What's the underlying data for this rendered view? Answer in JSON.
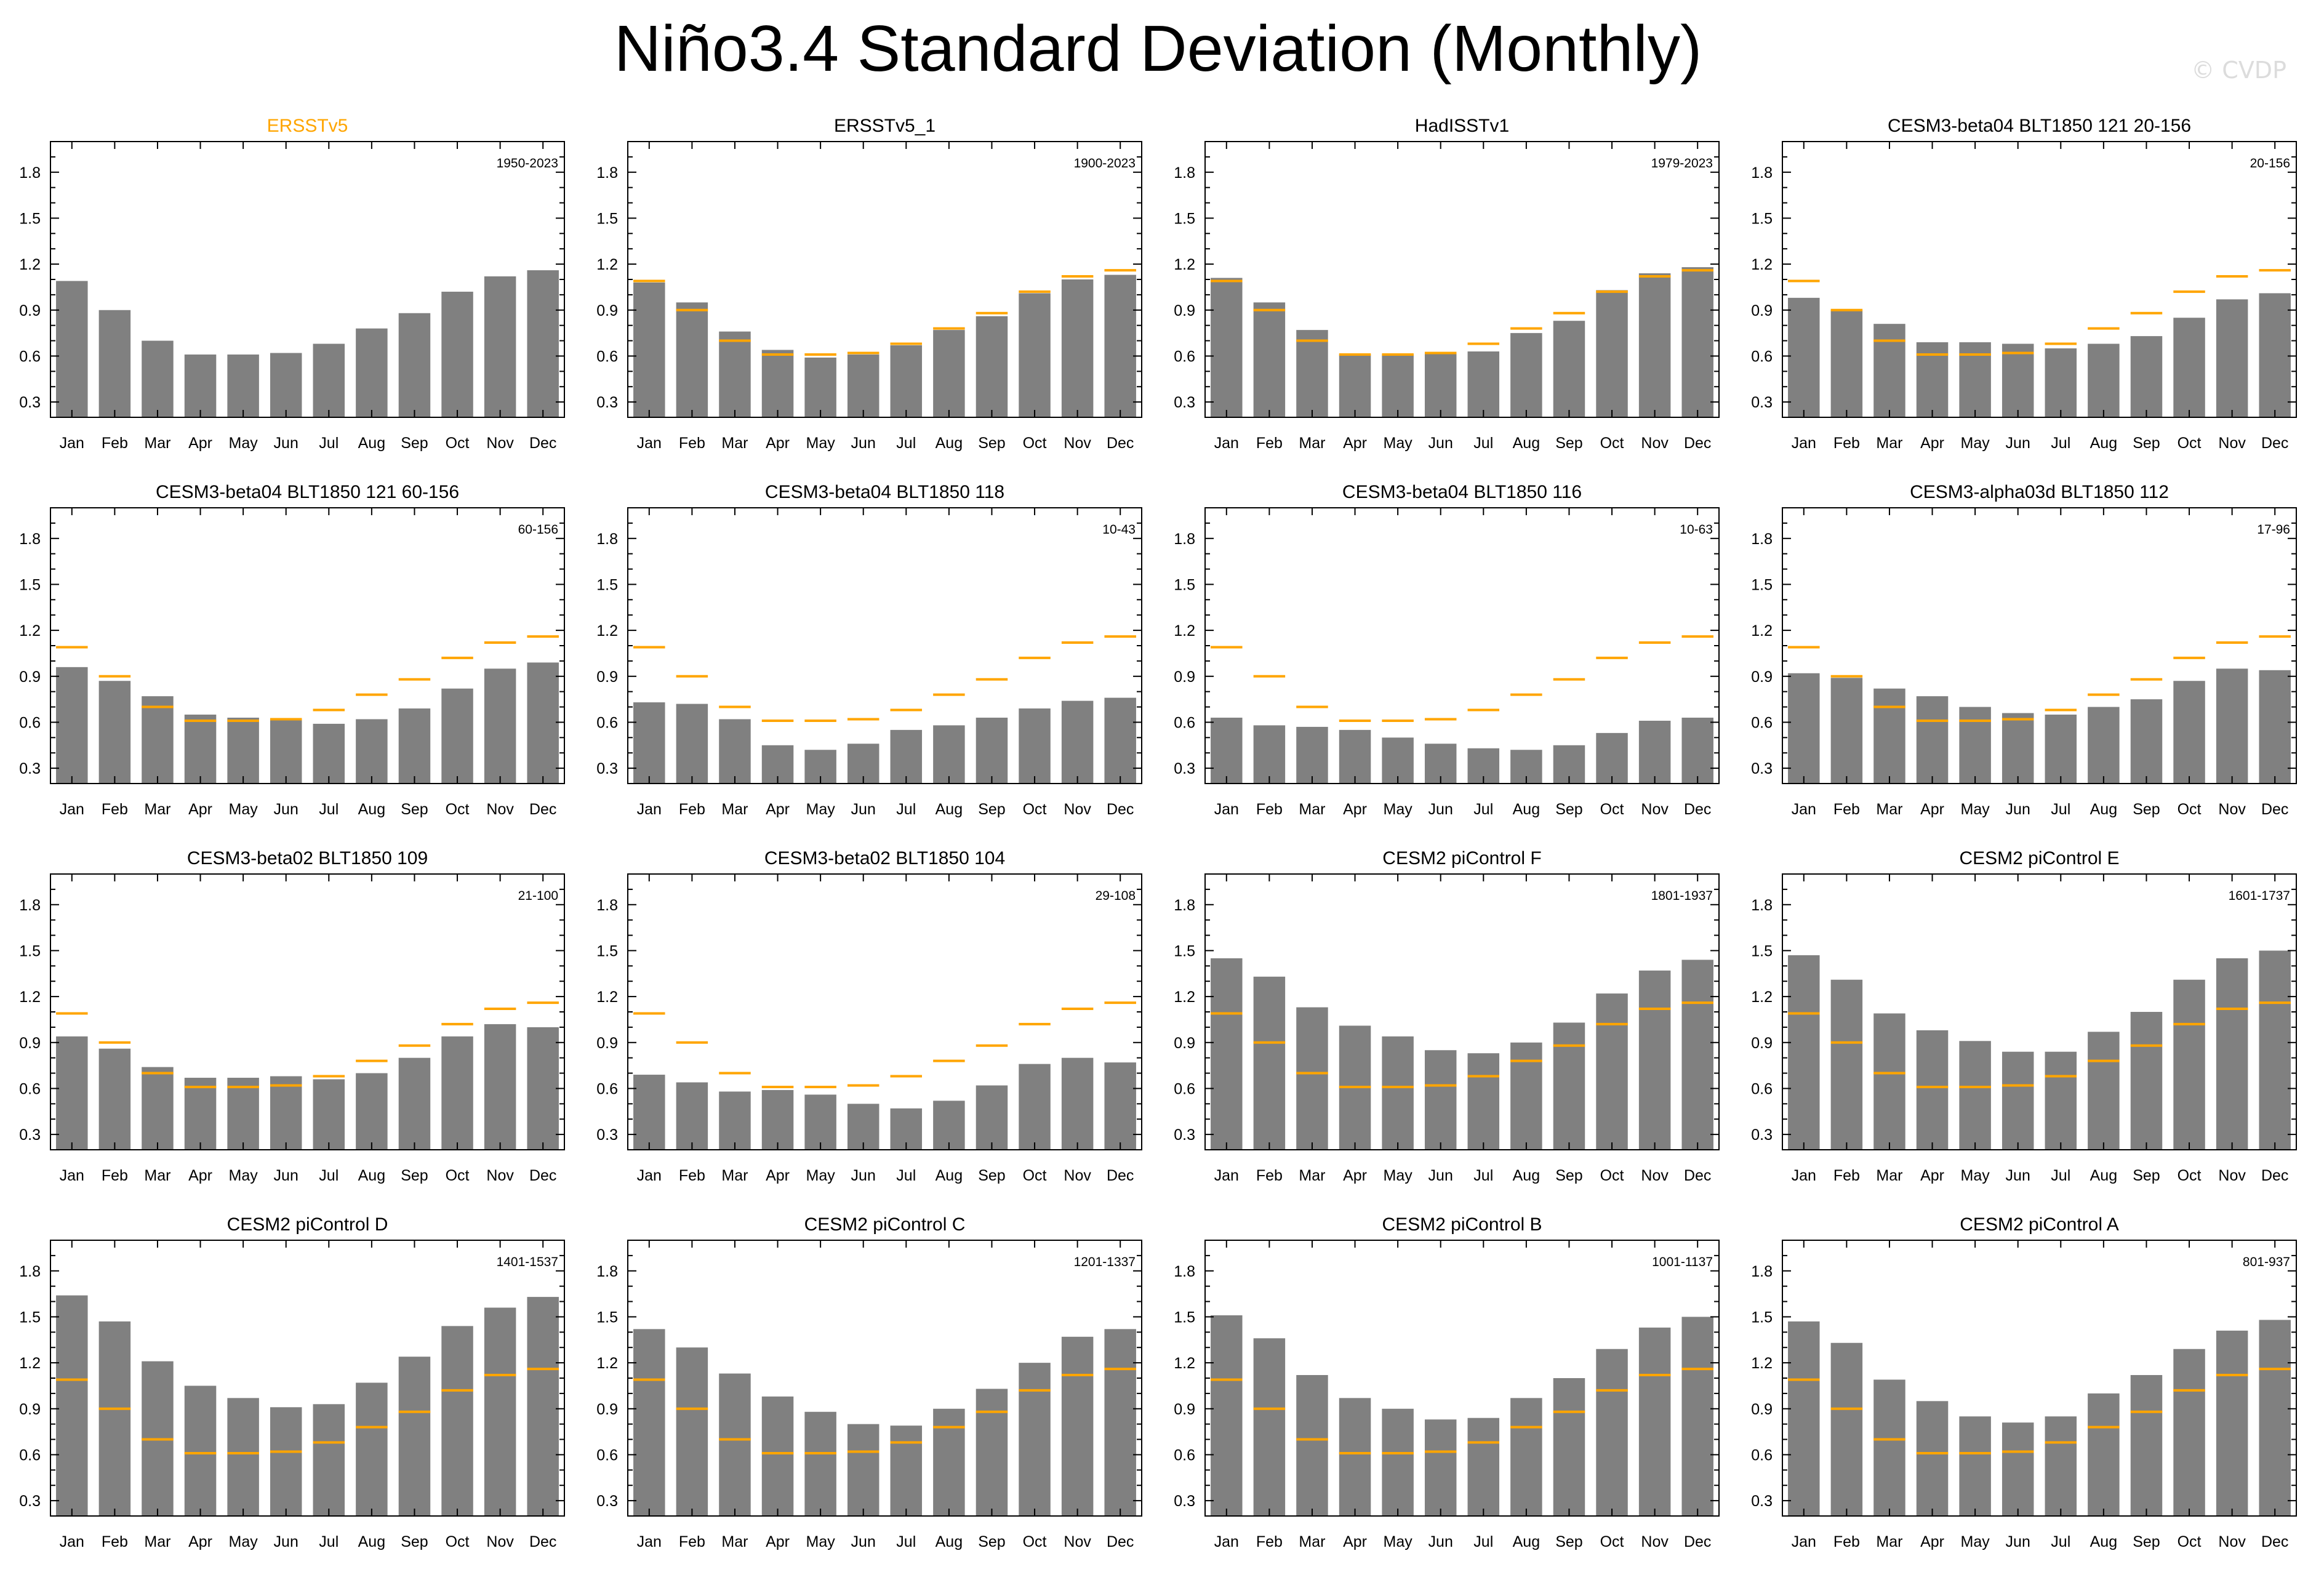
{
  "title": "Niño3.4 Standard Deviation (Monthly)",
  "watermark": "© CVDP",
  "colors": {
    "bar": "#808080",
    "reference_line": "#FFA500",
    "highlight_title": "#FFA500",
    "axis": "#000000"
  },
  "chart_data": [
    {
      "type": "bar",
      "title": "ERSSTv5",
      "period": "1950-2023",
      "highlight": true,
      "categories": [
        "Jan",
        "Feb",
        "Mar",
        "Apr",
        "May",
        "Jun",
        "Jul",
        "Aug",
        "Sep",
        "Oct",
        "Nov",
        "Dec"
      ],
      "values": [
        1.09,
        0.9,
        0.7,
        0.61,
        0.61,
        0.62,
        0.68,
        0.78,
        0.88,
        1.02,
        1.12,
        1.16
      ],
      "reference": [
        1.09,
        0.9,
        0.7,
        0.61,
        0.61,
        0.62,
        0.68,
        0.78,
        0.88,
        1.02,
        1.12,
        1.16
      ],
      "show_reference": false,
      "yticks": [
        "0.3",
        "0.6",
        "0.9",
        "1.2",
        "1.5",
        "1.8"
      ],
      "ylim": [
        0.2,
        2.0
      ]
    },
    {
      "type": "bar",
      "title": "ERSSTv5_1",
      "period": "1900-2023",
      "highlight": false,
      "categories": [
        "Jan",
        "Feb",
        "Mar",
        "Apr",
        "May",
        "Jun",
        "Jul",
        "Aug",
        "Sep",
        "Oct",
        "Nov",
        "Dec"
      ],
      "values": [
        1.08,
        0.95,
        0.76,
        0.64,
        0.59,
        0.61,
        0.67,
        0.77,
        0.86,
        1.01,
        1.1,
        1.13
      ],
      "reference": [
        1.09,
        0.9,
        0.7,
        0.61,
        0.61,
        0.62,
        0.68,
        0.78,
        0.88,
        1.02,
        1.12,
        1.16
      ],
      "show_reference": true,
      "yticks": [
        "0.3",
        "0.6",
        "0.9",
        "1.2",
        "1.5",
        "1.8"
      ],
      "ylim": [
        0.2,
        2.0
      ]
    },
    {
      "type": "bar",
      "title": "HadISSTv1",
      "period": "1979-2023",
      "highlight": false,
      "categories": [
        "Jan",
        "Feb",
        "Mar",
        "Apr",
        "May",
        "Jun",
        "Jul",
        "Aug",
        "Sep",
        "Oct",
        "Nov",
        "Dec"
      ],
      "values": [
        1.11,
        0.95,
        0.77,
        0.61,
        0.61,
        0.62,
        0.63,
        0.75,
        0.83,
        1.03,
        1.14,
        1.18
      ],
      "reference": [
        1.09,
        0.9,
        0.7,
        0.61,
        0.61,
        0.62,
        0.68,
        0.78,
        0.88,
        1.02,
        1.12,
        1.16
      ],
      "show_reference": true,
      "yticks": [
        "0.3",
        "0.6",
        "0.9",
        "1.2",
        "1.5",
        "1.8"
      ],
      "ylim": [
        0.2,
        2.0
      ]
    },
    {
      "type": "bar",
      "title": "CESM3-beta04 BLT1850 121 20-156",
      "period": "20-156",
      "highlight": false,
      "categories": [
        "Jan",
        "Feb",
        "Mar",
        "Apr",
        "May",
        "Jun",
        "Jul",
        "Aug",
        "Sep",
        "Oct",
        "Nov",
        "Dec"
      ],
      "values": [
        0.98,
        0.9,
        0.81,
        0.69,
        0.69,
        0.68,
        0.65,
        0.68,
        0.73,
        0.85,
        0.97,
        1.01
      ],
      "reference": [
        1.09,
        0.9,
        0.7,
        0.61,
        0.61,
        0.62,
        0.68,
        0.78,
        0.88,
        1.02,
        1.12,
        1.16
      ],
      "show_reference": true,
      "yticks": [
        "0.3",
        "0.6",
        "0.9",
        "1.2",
        "1.5",
        "1.8"
      ],
      "ylim": [
        0.2,
        2.0
      ]
    },
    {
      "type": "bar",
      "title": "CESM3-beta04 BLT1850 121 60-156",
      "period": "60-156",
      "highlight": false,
      "categories": [
        "Jan",
        "Feb",
        "Mar",
        "Apr",
        "May",
        "Jun",
        "Jul",
        "Aug",
        "Sep",
        "Oct",
        "Nov",
        "Dec"
      ],
      "values": [
        0.96,
        0.87,
        0.77,
        0.65,
        0.63,
        0.62,
        0.59,
        0.62,
        0.69,
        0.82,
        0.95,
        0.99
      ],
      "reference": [
        1.09,
        0.9,
        0.7,
        0.61,
        0.61,
        0.62,
        0.68,
        0.78,
        0.88,
        1.02,
        1.12,
        1.16
      ],
      "show_reference": true,
      "yticks": [
        "0.3",
        "0.6",
        "0.9",
        "1.2",
        "1.5",
        "1.8"
      ],
      "ylim": [
        0.2,
        2.0
      ]
    },
    {
      "type": "bar",
      "title": "CESM3-beta04 BLT1850 118",
      "period": "10-43",
      "highlight": false,
      "categories": [
        "Jan",
        "Feb",
        "Mar",
        "Apr",
        "May",
        "Jun",
        "Jul",
        "Aug",
        "Sep",
        "Oct",
        "Nov",
        "Dec"
      ],
      "values": [
        0.73,
        0.72,
        0.62,
        0.45,
        0.42,
        0.46,
        0.55,
        0.58,
        0.63,
        0.69,
        0.74,
        0.76
      ],
      "reference": [
        1.09,
        0.9,
        0.7,
        0.61,
        0.61,
        0.62,
        0.68,
        0.78,
        0.88,
        1.02,
        1.12,
        1.16
      ],
      "show_reference": true,
      "yticks": [
        "0.3",
        "0.6",
        "0.9",
        "1.2",
        "1.5",
        "1.8"
      ],
      "ylim": [
        0.2,
        2.0
      ]
    },
    {
      "type": "bar",
      "title": "CESM3-beta04 BLT1850 116",
      "period": "10-63",
      "highlight": false,
      "categories": [
        "Jan",
        "Feb",
        "Mar",
        "Apr",
        "May",
        "Jun",
        "Jul",
        "Aug",
        "Sep",
        "Oct",
        "Nov",
        "Dec"
      ],
      "values": [
        0.63,
        0.58,
        0.57,
        0.55,
        0.5,
        0.46,
        0.43,
        0.42,
        0.45,
        0.53,
        0.61,
        0.63
      ],
      "reference": [
        1.09,
        0.9,
        0.7,
        0.61,
        0.61,
        0.62,
        0.68,
        0.78,
        0.88,
        1.02,
        1.12,
        1.16
      ],
      "show_reference": true,
      "yticks": [
        "0.3",
        "0.6",
        "0.9",
        "1.2",
        "1.5",
        "1.8"
      ],
      "ylim": [
        0.2,
        2.0
      ]
    },
    {
      "type": "bar",
      "title": "CESM3-alpha03d BLT1850 112",
      "period": "17-96",
      "highlight": false,
      "categories": [
        "Jan",
        "Feb",
        "Mar",
        "Apr",
        "May",
        "Jun",
        "Jul",
        "Aug",
        "Sep",
        "Oct",
        "Nov",
        "Dec"
      ],
      "values": [
        0.92,
        0.89,
        0.82,
        0.77,
        0.7,
        0.66,
        0.65,
        0.7,
        0.75,
        0.87,
        0.95,
        0.94
      ],
      "reference": [
        1.09,
        0.9,
        0.7,
        0.61,
        0.61,
        0.62,
        0.68,
        0.78,
        0.88,
        1.02,
        1.12,
        1.16
      ],
      "show_reference": true,
      "yticks": [
        "0.3",
        "0.6",
        "0.9",
        "1.2",
        "1.5",
        "1.8"
      ],
      "ylim": [
        0.2,
        2.0
      ]
    },
    {
      "type": "bar",
      "title": "CESM3-beta02 BLT1850 109",
      "period": "21-100",
      "highlight": false,
      "categories": [
        "Jan",
        "Feb",
        "Mar",
        "Apr",
        "May",
        "Jun",
        "Jul",
        "Aug",
        "Sep",
        "Oct",
        "Nov",
        "Dec"
      ],
      "values": [
        0.94,
        0.86,
        0.74,
        0.67,
        0.67,
        0.68,
        0.66,
        0.7,
        0.8,
        0.94,
        1.02,
        1.0
      ],
      "reference": [
        1.09,
        0.9,
        0.7,
        0.61,
        0.61,
        0.62,
        0.68,
        0.78,
        0.88,
        1.02,
        1.12,
        1.16
      ],
      "show_reference": true,
      "yticks": [
        "0.3",
        "0.6",
        "0.9",
        "1.2",
        "1.5",
        "1.8"
      ],
      "ylim": [
        0.2,
        2.0
      ]
    },
    {
      "type": "bar",
      "title": "CESM3-beta02 BLT1850 104",
      "period": "29-108",
      "highlight": false,
      "categories": [
        "Jan",
        "Feb",
        "Mar",
        "Apr",
        "May",
        "Jun",
        "Jul",
        "Aug",
        "Sep",
        "Oct",
        "Nov",
        "Dec"
      ],
      "values": [
        0.69,
        0.64,
        0.58,
        0.59,
        0.56,
        0.5,
        0.47,
        0.52,
        0.62,
        0.76,
        0.8,
        0.77
      ],
      "reference": [
        1.09,
        0.9,
        0.7,
        0.61,
        0.61,
        0.62,
        0.68,
        0.78,
        0.88,
        1.02,
        1.12,
        1.16
      ],
      "show_reference": true,
      "yticks": [
        "0.3",
        "0.6",
        "0.9",
        "1.2",
        "1.5",
        "1.8"
      ],
      "ylim": [
        0.2,
        2.0
      ]
    },
    {
      "type": "bar",
      "title": "CESM2 piControl F",
      "period": "1801-1937",
      "highlight": false,
      "categories": [
        "Jan",
        "Feb",
        "Mar",
        "Apr",
        "May",
        "Jun",
        "Jul",
        "Aug",
        "Sep",
        "Oct",
        "Nov",
        "Dec"
      ],
      "values": [
        1.45,
        1.33,
        1.13,
        1.01,
        0.94,
        0.85,
        0.83,
        0.9,
        1.03,
        1.22,
        1.37,
        1.44
      ],
      "reference": [
        1.09,
        0.9,
        0.7,
        0.61,
        0.61,
        0.62,
        0.68,
        0.78,
        0.88,
        1.02,
        1.12,
        1.16
      ],
      "show_reference": true,
      "yticks": [
        "0.3",
        "0.6",
        "0.9",
        "1.2",
        "1.5",
        "1.8"
      ],
      "ylim": [
        0.2,
        2.0
      ]
    },
    {
      "type": "bar",
      "title": "CESM2 piControl E",
      "period": "1601-1737",
      "highlight": false,
      "categories": [
        "Jan",
        "Feb",
        "Mar",
        "Apr",
        "May",
        "Jun",
        "Jul",
        "Aug",
        "Sep",
        "Oct",
        "Nov",
        "Dec"
      ],
      "values": [
        1.47,
        1.31,
        1.09,
        0.98,
        0.91,
        0.84,
        0.84,
        0.97,
        1.1,
        1.31,
        1.45,
        1.5
      ],
      "reference": [
        1.09,
        0.9,
        0.7,
        0.61,
        0.61,
        0.62,
        0.68,
        0.78,
        0.88,
        1.02,
        1.12,
        1.16
      ],
      "show_reference": true,
      "yticks": [
        "0.3",
        "0.6",
        "0.9",
        "1.2",
        "1.5",
        "1.8"
      ],
      "ylim": [
        0.2,
        2.0
      ]
    },
    {
      "type": "bar",
      "title": "CESM2 piControl D",
      "period": "1401-1537",
      "highlight": false,
      "categories": [
        "Jan",
        "Feb",
        "Mar",
        "Apr",
        "May",
        "Jun",
        "Jul",
        "Aug",
        "Sep",
        "Oct",
        "Nov",
        "Dec"
      ],
      "values": [
        1.64,
        1.47,
        1.21,
        1.05,
        0.97,
        0.91,
        0.93,
        1.07,
        1.24,
        1.44,
        1.56,
        1.63
      ],
      "reference": [
        1.09,
        0.9,
        0.7,
        0.61,
        0.61,
        0.62,
        0.68,
        0.78,
        0.88,
        1.02,
        1.12,
        1.16
      ],
      "show_reference": true,
      "yticks": [
        "0.3",
        "0.6",
        "0.9",
        "1.2",
        "1.5",
        "1.8"
      ],
      "ylim": [
        0.2,
        2.0
      ]
    },
    {
      "type": "bar",
      "title": "CESM2 piControl C",
      "period": "1201-1337",
      "highlight": false,
      "categories": [
        "Jan",
        "Feb",
        "Mar",
        "Apr",
        "May",
        "Jun",
        "Jul",
        "Aug",
        "Sep",
        "Oct",
        "Nov",
        "Dec"
      ],
      "values": [
        1.42,
        1.3,
        1.13,
        0.98,
        0.88,
        0.8,
        0.79,
        0.9,
        1.03,
        1.2,
        1.37,
        1.42
      ],
      "reference": [
        1.09,
        0.9,
        0.7,
        0.61,
        0.61,
        0.62,
        0.68,
        0.78,
        0.88,
        1.02,
        1.12,
        1.16
      ],
      "show_reference": true,
      "yticks": [
        "0.3",
        "0.6",
        "0.9",
        "1.2",
        "1.5",
        "1.8"
      ],
      "ylim": [
        0.2,
        2.0
      ]
    },
    {
      "type": "bar",
      "title": "CESM2 piControl B",
      "period": "1001-1137",
      "highlight": false,
      "categories": [
        "Jan",
        "Feb",
        "Mar",
        "Apr",
        "May",
        "Jun",
        "Jul",
        "Aug",
        "Sep",
        "Oct",
        "Nov",
        "Dec"
      ],
      "values": [
        1.51,
        1.36,
        1.12,
        0.97,
        0.9,
        0.83,
        0.84,
        0.97,
        1.1,
        1.29,
        1.43,
        1.5
      ],
      "reference": [
        1.09,
        0.9,
        0.7,
        0.61,
        0.61,
        0.62,
        0.68,
        0.78,
        0.88,
        1.02,
        1.12,
        1.16
      ],
      "show_reference": true,
      "yticks": [
        "0.3",
        "0.6",
        "0.9",
        "1.2",
        "1.5",
        "1.8"
      ],
      "ylim": [
        0.2,
        2.0
      ]
    },
    {
      "type": "bar",
      "title": "CESM2 piControl A",
      "period": "801-937",
      "highlight": false,
      "categories": [
        "Jan",
        "Feb",
        "Mar",
        "Apr",
        "May",
        "Jun",
        "Jul",
        "Aug",
        "Sep",
        "Oct",
        "Nov",
        "Dec"
      ],
      "values": [
        1.47,
        1.33,
        1.09,
        0.95,
        0.85,
        0.81,
        0.85,
        1.0,
        1.12,
        1.29,
        1.41,
        1.48
      ],
      "reference": [
        1.09,
        0.9,
        0.7,
        0.61,
        0.61,
        0.62,
        0.68,
        0.78,
        0.88,
        1.02,
        1.12,
        1.16
      ],
      "show_reference": true,
      "yticks": [
        "0.3",
        "0.6",
        "0.9",
        "1.2",
        "1.5",
        "1.8"
      ],
      "ylim": [
        0.2,
        2.0
      ]
    }
  ]
}
